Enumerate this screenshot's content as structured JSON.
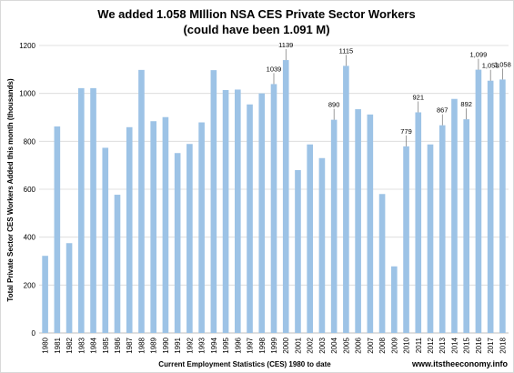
{
  "chart_data": {
    "type": "bar",
    "title": "We added 1.058 MIllion  NSA CES Private Sector Workers",
    "subtitle": "(could have been 1.091 M)",
    "xlabel": "Current Employment Statistics (CES) 1980 to date",
    "ylabel": "Total Private Sector CES Workers Added this month (thousands)",
    "ylim": [
      0,
      1200
    ],
    "yticks": [
      0,
      200,
      400,
      600,
      800,
      1000,
      1200
    ],
    "grid": true,
    "legend": "none",
    "bar_color": "#9dc3e6",
    "categories": [
      "1980",
      "1981",
      "1982",
      "1983",
      "1984",
      "1985",
      "1986",
      "1987",
      "1988",
      "1989",
      "1990",
      "1991",
      "1992",
      "1993",
      "1994",
      "1995",
      "1996",
      "1997",
      "1998",
      "1999",
      "2000",
      "2001",
      "2002",
      "2003",
      "2004",
      "2005",
      "2006",
      "2007",
      "2008",
      "2009",
      "2010",
      "2011",
      "2012",
      "2013",
      "2014",
      "2015",
      "2016",
      "2017",
      "2018"
    ],
    "values": [
      322,
      862,
      375,
      1022,
      1022,
      773,
      577,
      859,
      1098,
      884,
      901,
      751,
      789,
      879,
      1097,
      1014,
      1016,
      954,
      1000,
      1039,
      1139,
      680,
      787,
      730,
      890,
      1115,
      934,
      912,
      580,
      278,
      779,
      921,
      787,
      867,
      977,
      892,
      1099,
      1053,
      1058
    ],
    "data_labels": [
      {
        "category": "1999",
        "text": "1039"
      },
      {
        "category": "2000",
        "text": "1139"
      },
      {
        "category": "2004",
        "text": "890"
      },
      {
        "category": "2005",
        "text": "1115"
      },
      {
        "category": "2010",
        "text": "779"
      },
      {
        "category": "2011",
        "text": "921"
      },
      {
        "category": "2013",
        "text": "867"
      },
      {
        "category": "2015",
        "text": "892"
      },
      {
        "category": "2016",
        "text": "1,099"
      },
      {
        "category": "2017",
        "text": "1,053"
      },
      {
        "category": "2018",
        "text": "1,058"
      }
    ]
  },
  "credit": "www.itstheeconomy.info"
}
